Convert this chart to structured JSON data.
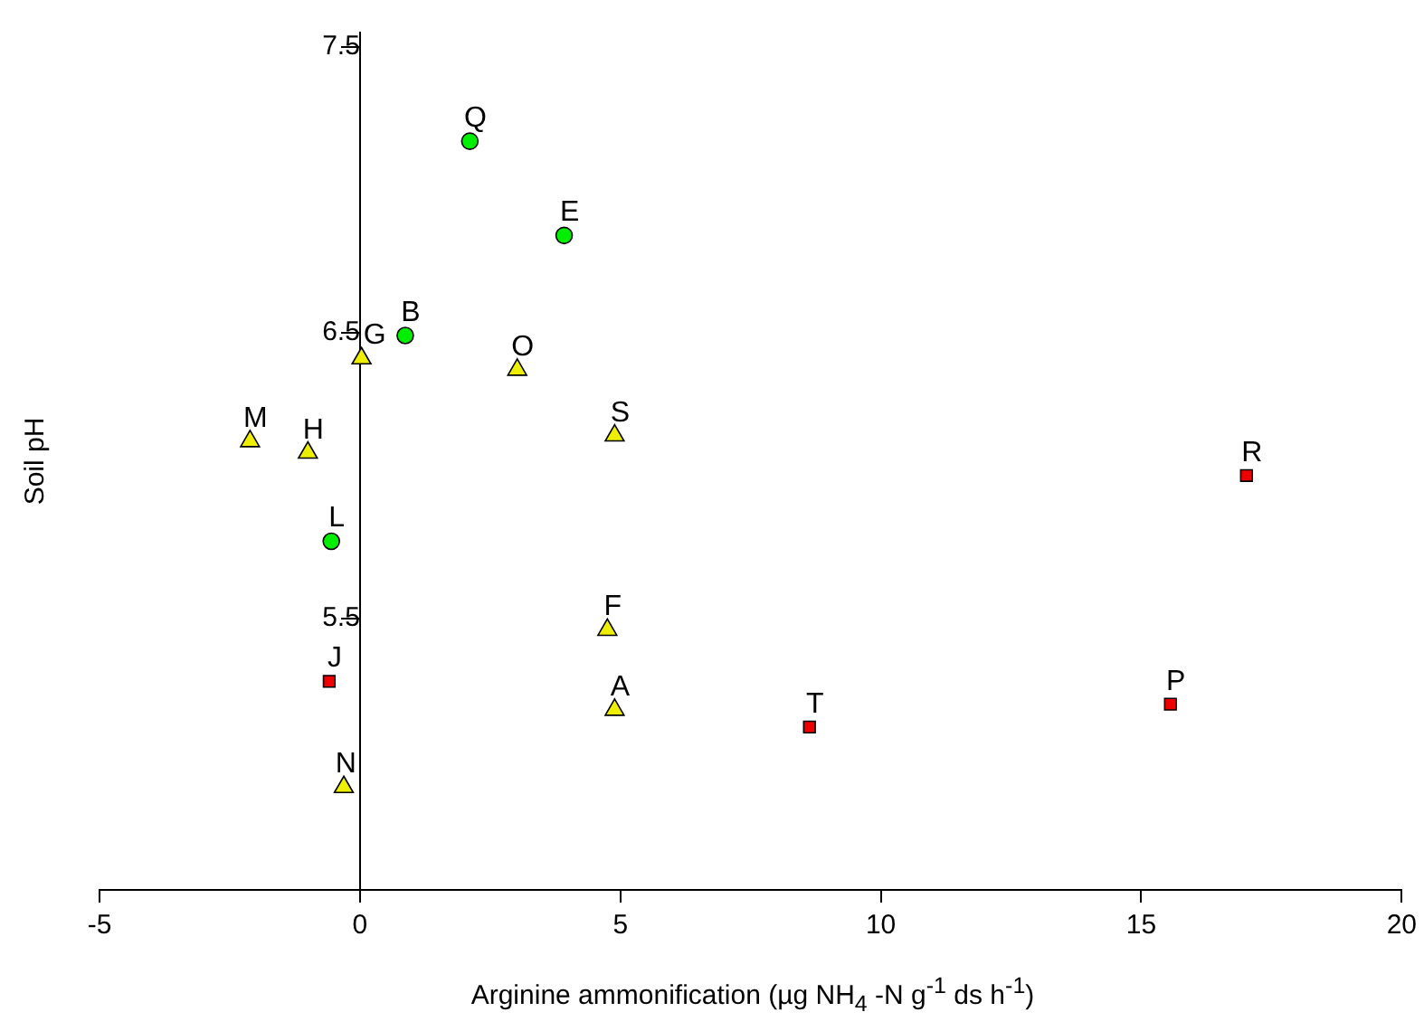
{
  "chart_data": {
    "type": "scatter",
    "xlabel": "Arginine ammonification (µg NH$_{4}$ -N g$^{-1}$ ds h$^{-1}$)",
    "ylabel": "Soil pH",
    "xlim": [
      -5,
      20
    ],
    "xticks": [
      -5,
      0,
      5,
      10,
      15,
      20
    ],
    "ylim": [
      4.55,
      7.55
    ],
    "yticks": [
      5.5,
      6.5,
      7.5
    ],
    "grid": false,
    "legend": false,
    "series": [
      {
        "color": "#00ee00",
        "marker": "circle",
        "x": [
          2.11,
          3.92,
          0.87,
          -0.55
        ],
        "values": [
          7.17,
          6.84,
          6.49,
          5.77
        ]
      },
      {
        "color": "#eeee00",
        "marker": "triangle",
        "x": [
          0.03,
          3.02,
          -2.11,
          -1.0,
          4.89,
          4.75,
          4.89,
          -0.31
        ],
        "values": [
          6.41,
          6.37,
          6.12,
          6.08,
          6.14,
          5.46,
          5.18,
          4.91
        ]
      },
      {
        "color": "#ee0000",
        "marker": "square",
        "x": [
          17.02,
          -0.59,
          8.63,
          15.56
        ],
        "values": [
          6.0,
          5.28,
          5.12,
          5.2
        ]
      }
    ],
    "annotations": [
      {
        "text": "Q",
        "x": 2.11,
        "y": 7.17
      },
      {
        "text": "E",
        "x": 3.92,
        "y": 6.84
      },
      {
        "text": "B",
        "x": 0.87,
        "y": 6.49
      },
      {
        "text": "L",
        "x": -0.55,
        "y": 5.77
      },
      {
        "text": "G",
        "x": 0.03,
        "y": 6.41
      },
      {
        "text": "O",
        "x": 3.02,
        "y": 6.37
      },
      {
        "text": "M",
        "x": -2.11,
        "y": 6.12
      },
      {
        "text": "H",
        "x": -1.0,
        "y": 6.08
      },
      {
        "text": "S",
        "x": 4.89,
        "y": 6.14
      },
      {
        "text": "F",
        "x": 4.75,
        "y": 5.46
      },
      {
        "text": "A",
        "x": 4.89,
        "y": 5.18
      },
      {
        "text": "N",
        "x": -0.31,
        "y": 4.91
      },
      {
        "text": "R",
        "x": 17.02,
        "y": 6.0
      },
      {
        "text": "J",
        "x": -0.59,
        "y": 5.28
      },
      {
        "text": "T",
        "x": 8.63,
        "y": 5.12
      },
      {
        "text": "P",
        "x": 15.56,
        "y": 5.2
      }
    ]
  }
}
